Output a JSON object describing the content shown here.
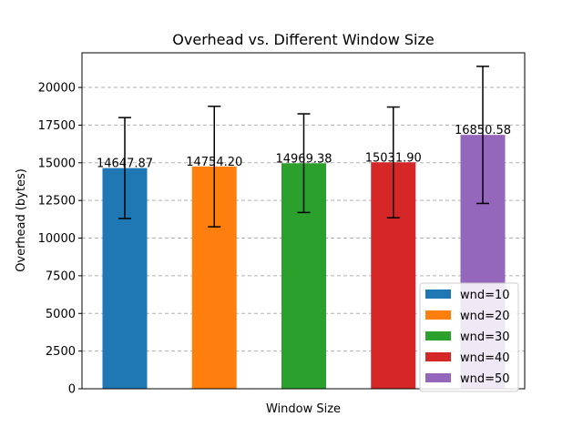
{
  "chart_data": {
    "type": "bar",
    "title": "Overhead vs. Different Window Size",
    "xlabel": "Window Size",
    "ylabel": "Overhead (bytes)",
    "ylim": [
      0,
      22300
    ],
    "yticks": [
      0,
      2500,
      5000,
      7500,
      10000,
      12500,
      15000,
      17500,
      20000
    ],
    "grid": "y-dashed",
    "legend_position": "lower-right",
    "series": [
      {
        "name": "wnd=10",
        "value": 14647.87,
        "label": "14647.87",
        "error_low": 11300,
        "error_high": 18000,
        "color": "#1f77b4"
      },
      {
        "name": "wnd=20",
        "value": 14754.2,
        "label": "14754.20",
        "error_low": 10750,
        "error_high": 18750,
        "color": "#ff7f0e"
      },
      {
        "name": "wnd=30",
        "value": 14969.38,
        "label": "14969.38",
        "error_low": 11700,
        "error_high": 18250,
        "color": "#2ca02c"
      },
      {
        "name": "wnd=40",
        "value": 15031.9,
        "label": "15031.90",
        "error_low": 11350,
        "error_high": 18700,
        "color": "#d62728"
      },
      {
        "name": "wnd=50",
        "value": 16850.58,
        "label": "16850.58",
        "error_low": 12300,
        "error_high": 21400,
        "color": "#9467bd"
      }
    ]
  }
}
